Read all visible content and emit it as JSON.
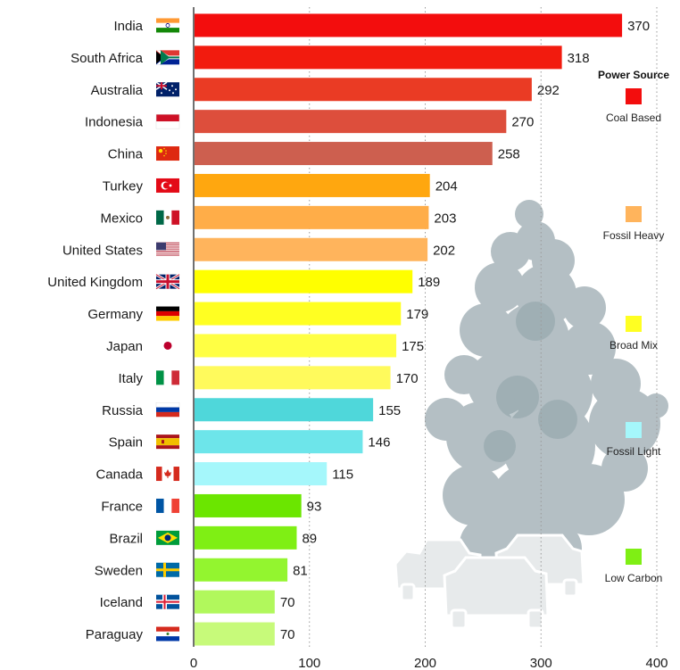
{
  "chart_data": {
    "type": "bar",
    "orientation": "horizontal",
    "categories": [
      "India",
      "South Africa",
      "Australia",
      "Indonesia",
      "China",
      "Turkey",
      "Mexico",
      "United States",
      "United Kingdom",
      "Germany",
      "Japan",
      "Italy",
      "Russia",
      "Spain",
      "Canada",
      "France",
      "Brazil",
      "Sweden",
      "Iceland",
      "Paraguay"
    ],
    "values": [
      370,
      318,
      292,
      270,
      258,
      204,
      203,
      202,
      189,
      179,
      175,
      170,
      155,
      146,
      115,
      93,
      89,
      81,
      70,
      70
    ],
    "bar_colors": [
      "#f30d0d",
      "#f21b0e",
      "#ea3b24",
      "#dd4e3c",
      "#cd5f4f",
      "#ffa70f",
      "#ffad48",
      "#ffb45c",
      "#ffff00",
      "#ffff22",
      "#ffff44",
      "#fffa5c",
      "#4fd7da",
      "#6de5ea",
      "#a5f7fb",
      "#6be600",
      "#7fef14",
      "#93f52f",
      "#b1f85c",
      "#c7fa7a"
    ],
    "flags": [
      "india-flag",
      "south-africa-flag",
      "australia-flag",
      "indonesia-flag",
      "china-flag",
      "turkey-flag",
      "mexico-flag",
      "united-states-flag",
      "united-kingdom-flag",
      "germany-flag",
      "japan-flag",
      "italy-flag",
      "russia-flag",
      "spain-flag",
      "canada-flag",
      "france-flag",
      "brazil-flag",
      "sweden-flag",
      "iceland-flag",
      "paraguay-flag"
    ],
    "xlim": [
      0,
      400
    ],
    "xticks": [
      "0",
      "100",
      "200",
      "300",
      "400"
    ],
    "title": "",
    "xlabel": "",
    "ylabel": "",
    "grid": "vertical dotted",
    "legend": {
      "title": "Power Source",
      "placement": "right",
      "items": [
        {
          "label": "Coal Based",
          "color": "#f30d0d"
        },
        {
          "label": "Fossil Heavy",
          "color": "#ffb45c"
        },
        {
          "label": "Broad Mix",
          "color": "#ffff22"
        },
        {
          "label": "Fossil Light",
          "color": "#a5f7fb"
        },
        {
          "label": "Low Carbon",
          "color": "#7fef14"
        }
      ]
    },
    "decoration": [
      "smoke-cloud",
      "car-silhouettes"
    ]
  }
}
